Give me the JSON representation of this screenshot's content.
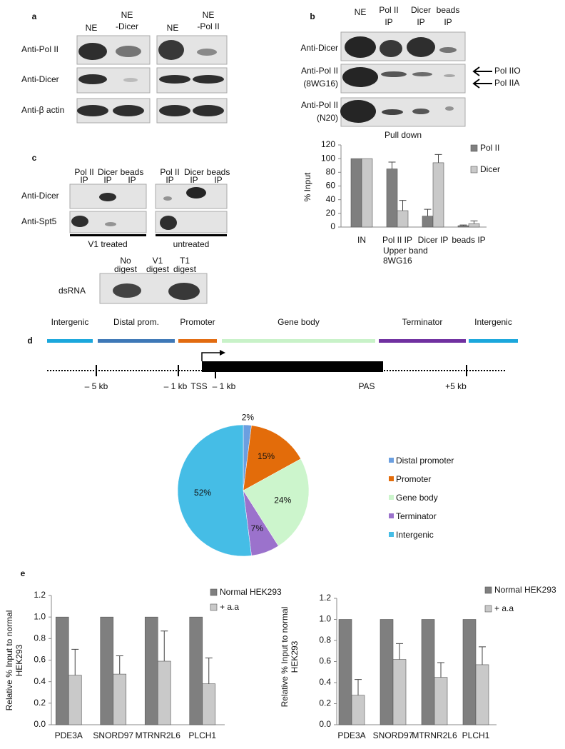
{
  "panel_labels": [
    "a",
    "b",
    "c",
    "d",
    "e"
  ],
  "blot_a": {
    "lanes": [
      [
        "NE"
      ],
      [
        "NE",
        "-Dicer"
      ],
      [
        "NE"
      ],
      [
        "NE",
        "-Pol II"
      ]
    ],
    "rows": [
      "Anti-Pol II",
      "Anti-Dicer",
      "Anti-β actin"
    ]
  },
  "blot_b": {
    "lanes": [
      [
        "NE"
      ],
      [
        "Pol II",
        "IP"
      ],
      [
        "Dicer",
        "IP"
      ],
      [
        "beads",
        "IP"
      ]
    ],
    "rows": [
      [
        "Anti-Dicer"
      ],
      [
        "Anti-Pol II",
        "(8WG16)"
      ],
      [
        "Anti-Pol II",
        "(N20)"
      ]
    ],
    "bands": [
      "Pol IIO",
      "Pol IIA"
    ]
  },
  "blot_c": {
    "lanes": [
      [
        "Pol II",
        "IP"
      ],
      [
        "Dicer",
        "IP"
      ],
      [
        "beads",
        "IP"
      ],
      [
        "Pol II",
        "IP"
      ],
      [
        "Dicer",
        "IP"
      ],
      [
        "beads",
        "IP"
      ]
    ],
    "rows": [
      "Anti-Dicer",
      "Anti-Spt5"
    ],
    "groups": [
      "V1 treated",
      "untreated"
    ],
    "digest_lanes": [
      [
        "No",
        "digest"
      ],
      [
        "V1",
        "digest"
      ],
      [
        "T1",
        "digest"
      ]
    ],
    "digest_row": "dsRNA"
  },
  "gene_map": {
    "regions": [
      {
        "label": "Intergenic",
        "color": "#1ba7dc"
      },
      {
        "label": "Distal prom.",
        "color": "#3e78b7"
      },
      {
        "label": "Promoter",
        "color": "#e26b10"
      },
      {
        "label": "Gene body",
        "color": "#c8f2c8"
      },
      {
        "label": "Terminator",
        "color": "#7030a0"
      },
      {
        "label": "Intergenic",
        "color": "#1ba7dc"
      }
    ],
    "positions": [
      "– 5 kb",
      "– 1 kb",
      "TSS",
      "– 1 kb",
      "PAS",
      "+5 kb"
    ]
  },
  "chart_data": [
    {
      "type": "bar",
      "title": "Pull down",
      "ylabel": "% Input",
      "categories": [
        "IN",
        "Pol II IP",
        "Dicer IP",
        "beads IP"
      ],
      "annotation": [
        "Upper band",
        "8WG16"
      ],
      "series": [
        {
          "name": "Pol II",
          "color": "#7f7f7f",
          "values": [
            100,
            85,
            16,
            2
          ],
          "errors": [
            null,
            10,
            10,
            1
          ]
        },
        {
          "name": "Dicer",
          "color": "#c9c9c9",
          "values": [
            100,
            24,
            94,
            5
          ],
          "errors": [
            null,
            15,
            12,
            4
          ]
        }
      ],
      "ylim": [
        0,
        120
      ],
      "yticks": [
        0,
        20,
        40,
        60,
        80,
        100,
        120
      ],
      "legend": "right"
    },
    {
      "type": "pie",
      "categories": [
        "Distal promoter",
        "Promoter",
        "Gene body",
        "Terminator",
        "Intergenic"
      ],
      "values": [
        2,
        15,
        24,
        7,
        52
      ],
      "value_labels": [
        "2%",
        "15%",
        "24%",
        "7%",
        "52%"
      ],
      "colors": [
        "#6b9fe0",
        "#e36c0a",
        "#ccf5cc",
        "#9b72cc",
        "#45bde6"
      ],
      "legend": "right"
    },
    {
      "type": "bar",
      "ylabel": [
        "Relative % Input to normal",
        "HEK293"
      ],
      "categories": [
        "PDE3A",
        "SNORD97",
        "MTRNR2L6",
        "PLCH1"
      ],
      "series": [
        {
          "name": "Normal HEK293",
          "color": "#7f7f7f",
          "values": [
            1,
            1,
            1,
            1
          ]
        },
        {
          "name": "+ a.a",
          "color": "#c9c9c9",
          "values": [
            0.46,
            0.47,
            0.59,
            0.38
          ],
          "errors": [
            0.24,
            0.17,
            0.28,
            0.24
          ]
        }
      ],
      "ylim": [
        0,
        1.2
      ],
      "yticks": [
        {
          "value": 0,
          "label": "0.0"
        },
        0.2,
        0.4,
        0.6,
        0.8,
        {
          "value": 1,
          "label": "1.0"
        },
        1.2
      ],
      "legend": "upper right"
    },
    {
      "type": "bar",
      "ylabel": [
        "Relative % Input to normal",
        "HEK293"
      ],
      "categories": [
        "PDE3A",
        "SNORD97",
        "MTRNR2L6",
        "PLCH1"
      ],
      "series": [
        {
          "name": "Normal HEK293",
          "color": "#7f7f7f",
          "values": [
            1,
            1,
            1,
            1
          ]
        },
        {
          "name": "+ a.a",
          "color": "#c9c9c9",
          "values": [
            0.28,
            0.62,
            0.45,
            0.57
          ],
          "errors": [
            0.15,
            0.15,
            0.14,
            0.17
          ]
        }
      ],
      "ylim": [
        0,
        1.2
      ],
      "yticks": [
        {
          "value": 0,
          "label": "0.0"
        },
        0.2,
        0.4,
        0.6,
        0.8,
        {
          "value": 1,
          "label": "1.0"
        },
        1.2
      ],
      "legend": "upper right"
    }
  ]
}
